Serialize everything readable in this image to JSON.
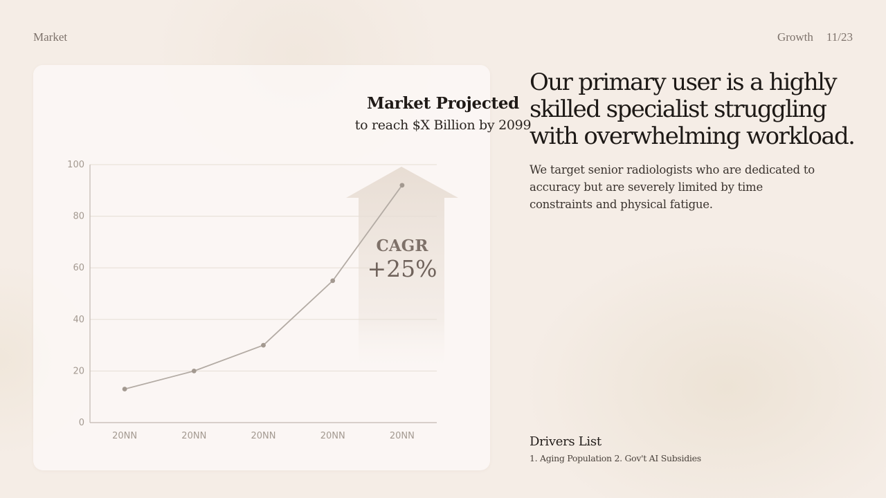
{
  "header": {
    "section": "Market",
    "topic": "Growth",
    "page_counter": "11/23"
  },
  "chart_data": {
    "type": "line",
    "title": "Market Projected",
    "subtitle": "to reach $X Billion by 2099",
    "categories": [
      "20NN",
      "20NN",
      "20NN",
      "20NN",
      "20NN"
    ],
    "values": [
      13,
      20,
      30,
      55,
      92
    ],
    "y_ticks": [
      0,
      20,
      40,
      60,
      80,
      100
    ],
    "ylim": [
      0,
      100
    ],
    "grid": true,
    "annotation": {
      "label": "CAGR",
      "value": "+25%"
    },
    "colors": {
      "line": "#b3aba4",
      "point": "#a39990",
      "grid": "#e6ddd5",
      "axis": "#c2b8b0",
      "arrow": "#e9dfd6"
    }
  },
  "content": {
    "headline": "Our primary user is a highly skilled specialist struggling with overwhelming workload.",
    "body": "We target senior radiologists who are dedicated to accuracy but are severely limited by time constraints and physical fatigue."
  },
  "drivers": {
    "title": "Drivers List",
    "items_text": "1. Aging Population 2. Gov't AI Subsidies"
  }
}
